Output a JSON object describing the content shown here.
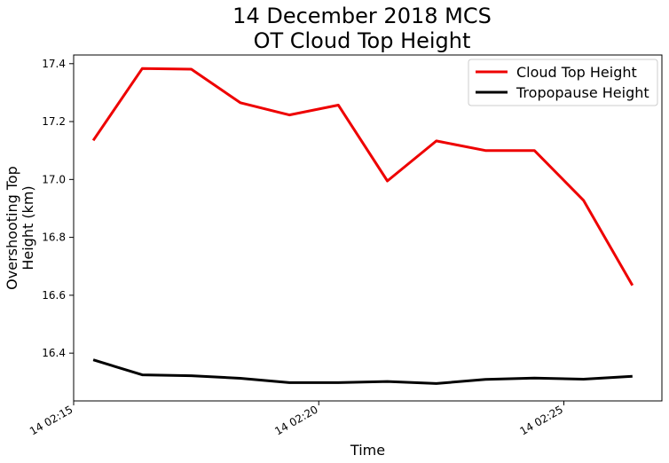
{
  "chart_data": {
    "type": "line",
    "title": [
      "14 December 2018 MCS",
      "OT Cloud Top Height"
    ],
    "xlabel": "Time",
    "ylabel": [
      "Overshooting Top",
      "Height (km)"
    ],
    "x_minutes": [
      15.4,
      16.4,
      17.4,
      18.4,
      19.4,
      20.4,
      21.4,
      22.4,
      23.4,
      24.4,
      25.4,
      26.4
    ],
    "xlim": [
      15.0,
      27.0
    ],
    "ylim": [
      16.235,
      17.43
    ],
    "xticks": [
      {
        "value": 15,
        "label": "14 02:15"
      },
      {
        "value": 20,
        "label": "14 02:20"
      },
      {
        "value": 25,
        "label": "14 02:25"
      }
    ],
    "yticks": [
      {
        "value": 16.4,
        "label": "16.4"
      },
      {
        "value": 16.6,
        "label": "16.6"
      },
      {
        "value": 16.8,
        "label": "16.8"
      },
      {
        "value": 17.0,
        "label": "17.0"
      },
      {
        "value": 17.2,
        "label": "17.2"
      },
      {
        "value": 17.4,
        "label": "17.4"
      }
    ],
    "grid": false,
    "legend_position": "top-right",
    "series": [
      {
        "name": "Cloud Top Height",
        "color": "#ee0000",
        "values": [
          17.135,
          17.383,
          17.381,
          17.265,
          17.223,
          17.257,
          16.995,
          17.133,
          17.1,
          17.1,
          16.928,
          16.634
        ]
      },
      {
        "name": "Tropopause Height",
        "color": "#000000",
        "values": [
          16.377,
          16.325,
          16.322,
          16.313,
          16.298,
          16.298,
          16.302,
          16.295,
          16.309,
          16.314,
          16.31,
          16.32
        ]
      }
    ]
  }
}
